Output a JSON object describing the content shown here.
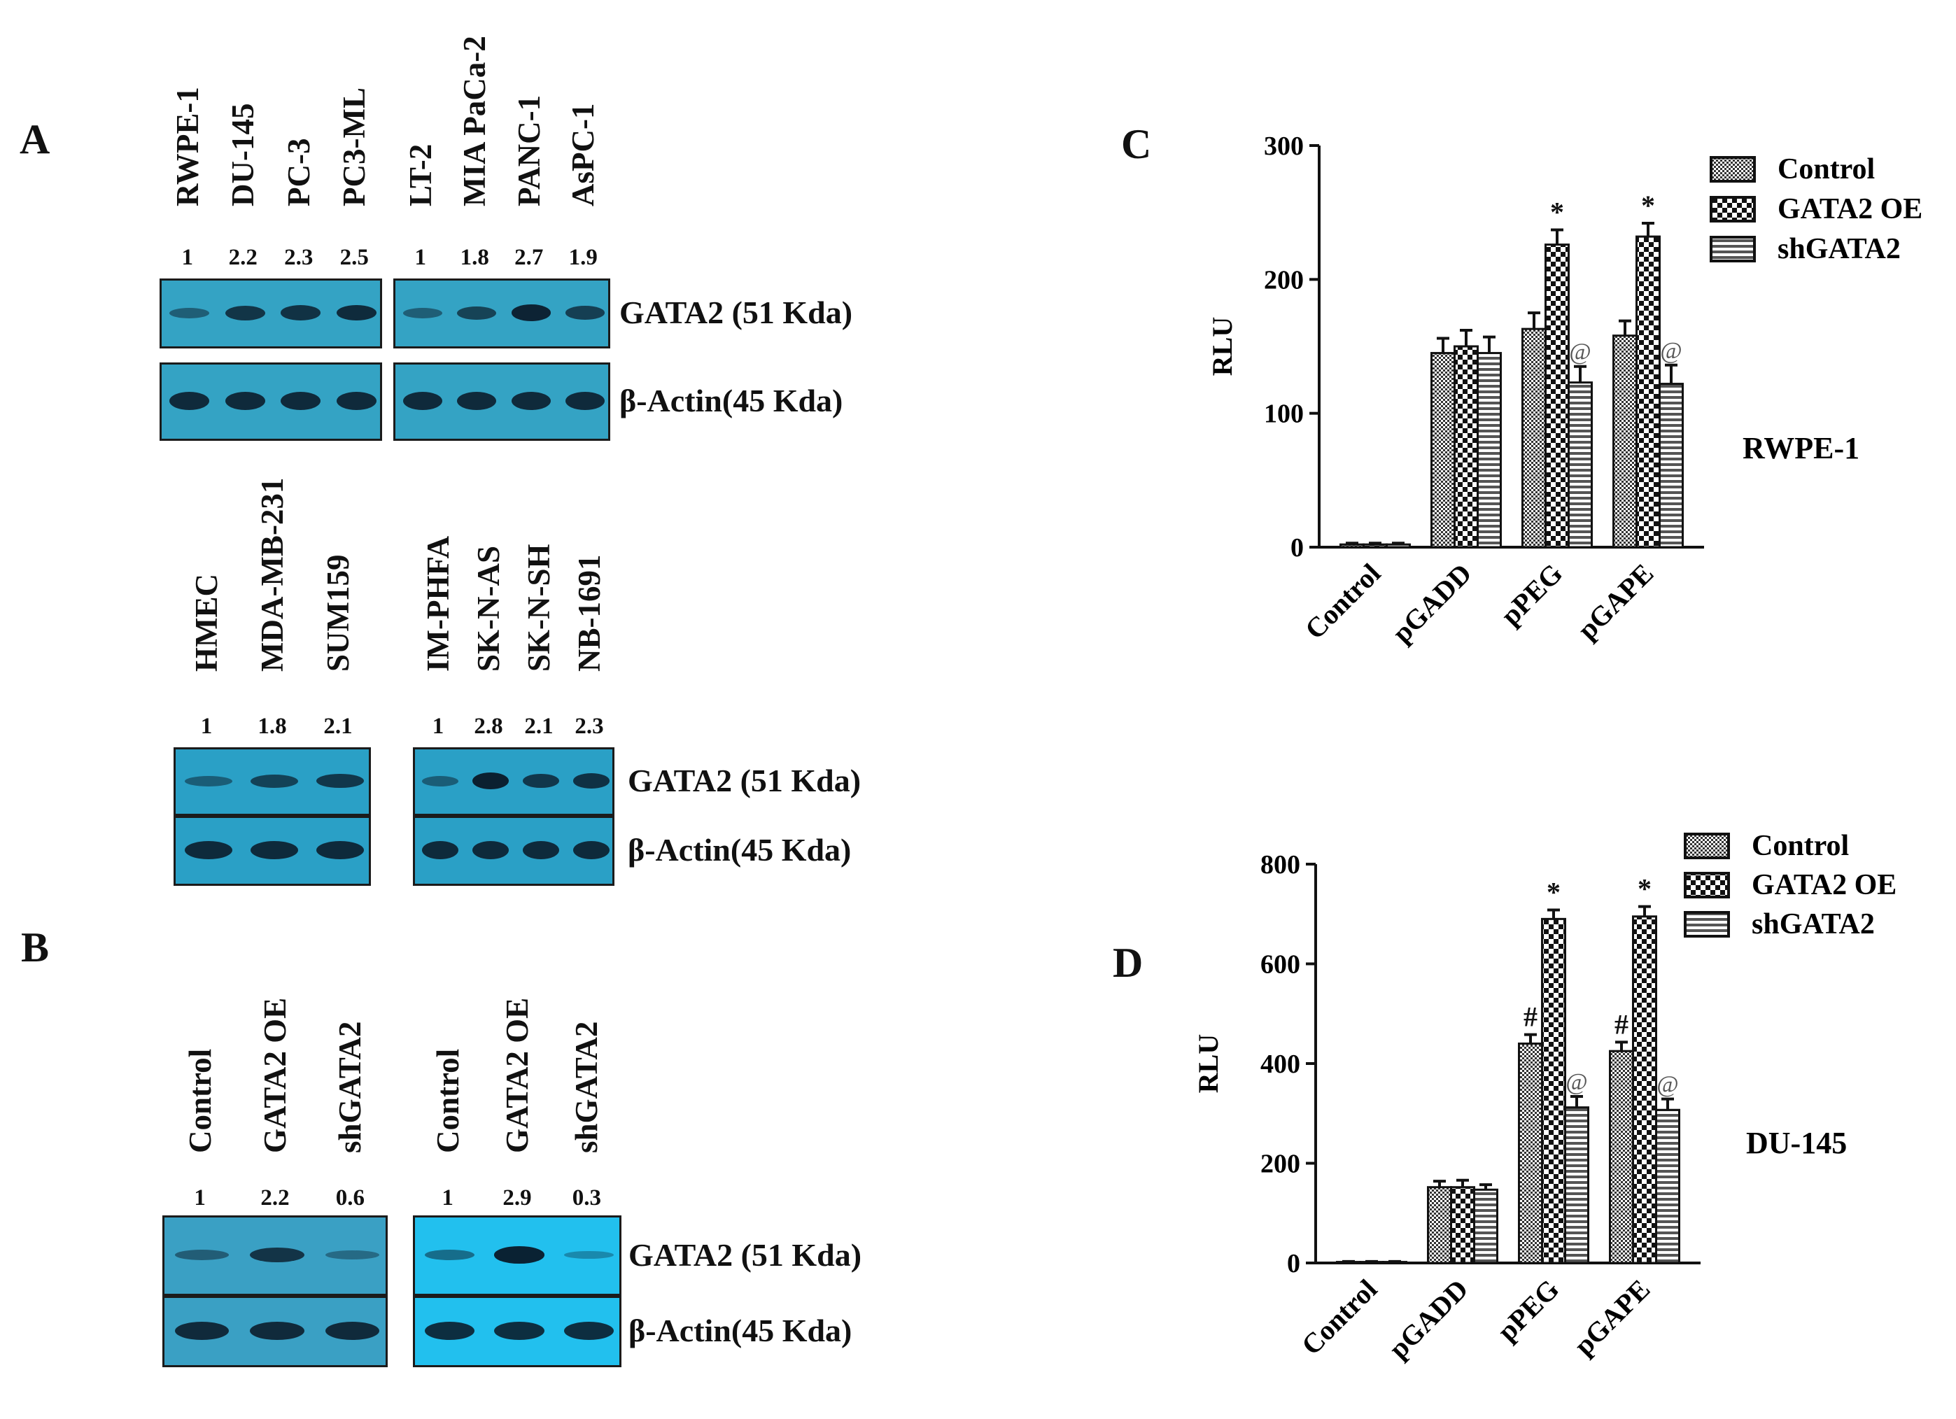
{
  "panels": {
    "A": "A",
    "B": "B",
    "C": "C",
    "D": "D"
  },
  "blot_labels": {
    "gata2": "GATA2 (51 Kda)",
    "actin": "β-Actin(45 Kda)"
  },
  "blot_groups": [
    {
      "lanes": [
        "RWPE-1",
        "DU-145",
        "PC-3",
        "PC3-ML"
      ],
      "ratios": [
        "1",
        "2.2",
        "2.3",
        "2.5"
      ]
    },
    {
      "lanes": [
        "LT-2",
        "MIA PaCa-2",
        "PANC-1",
        "AsPC-1"
      ],
      "ratios": [
        "1",
        "1.8",
        "2.7",
        "1.9"
      ]
    },
    {
      "lanes": [
        "HMEC",
        "MDA-MB-231",
        "SUM159"
      ],
      "ratios": [
        "1",
        "1.8",
        "2.1"
      ]
    },
    {
      "lanes": [
        "IM-PHFA",
        "SK-N-AS",
        "SK-N-SH",
        "NB-1691"
      ],
      "ratios": [
        "1",
        "2.8",
        "2.1",
        "2.3"
      ]
    },
    {
      "lanes": [
        "Control",
        "GATA2 OE",
        "shGATA2"
      ],
      "ratios": [
        "1",
        "2.2",
        "0.6"
      ]
    },
    {
      "lanes": [
        "Control",
        "GATA2 OE",
        "shGATA2"
      ],
      "ratios": [
        "1",
        "2.9",
        "0.3"
      ]
    }
  ],
  "chart_data": [
    {
      "type": "bar",
      "panel": "C",
      "cell_line": "RWPE-1",
      "ylabel": "RLU",
      "ylim": [
        0,
        300
      ],
      "yticks": [
        "0",
        "100",
        "200",
        "300"
      ],
      "categories": [
        "Control",
        "pGADD",
        "pPEG",
        "pGAPE"
      ],
      "series": [
        {
          "name": "Control",
          "values": [
            2,
            145,
            163,
            158
          ],
          "errors": [
            1,
            11,
            12,
            11
          ]
        },
        {
          "name": "GATA2 OE",
          "values": [
            2,
            150,
            226,
            232
          ],
          "errors": [
            1,
            12,
            11,
            10
          ]
        },
        {
          "name": "shGATA2",
          "values": [
            2,
            145,
            123,
            122
          ],
          "errors": [
            1,
            12,
            12,
            14
          ]
        }
      ],
      "annotations": [
        {
          "text": "*",
          "category": "pPEG",
          "series": "GATA2 OE"
        },
        {
          "text": "@",
          "category": "pPEG",
          "series": "shGATA2"
        },
        {
          "text": "*",
          "category": "pGAPE",
          "series": "GATA2 OE"
        },
        {
          "text": "@",
          "category": "pGAPE",
          "series": "shGATA2"
        }
      ],
      "legend": [
        "Control",
        "GATA2 OE",
        "shGATA2"
      ]
    },
    {
      "type": "bar",
      "panel": "D",
      "cell_line": "DU-145",
      "ylabel": "RLU",
      "ylim": [
        0,
        800
      ],
      "yticks": [
        "0",
        "200",
        "400",
        "600",
        "800"
      ],
      "categories": [
        "Control",
        "pGADD",
        "pPEG",
        "pGAPE"
      ],
      "series": [
        {
          "name": "Control",
          "values": [
            2,
            152,
            440,
            425
          ],
          "errors": [
            1,
            12,
            18,
            18
          ]
        },
        {
          "name": "GATA2 OE",
          "values": [
            2,
            152,
            690,
            695
          ],
          "errors": [
            1,
            14,
            18,
            20
          ]
        },
        {
          "name": "shGATA2",
          "values": [
            2,
            147,
            312,
            307
          ],
          "errors": [
            1,
            10,
            22,
            22
          ]
        }
      ],
      "annotations": [
        {
          "text": "#",
          "category": "pPEG",
          "series": "Control"
        },
        {
          "text": "*",
          "category": "pPEG",
          "series": "GATA2 OE"
        },
        {
          "text": "@",
          "category": "pPEG",
          "series": "shGATA2"
        },
        {
          "text": "#",
          "category": "pGAPE",
          "series": "Control"
        },
        {
          "text": "*",
          "category": "pGAPE",
          "series": "GATA2 OE"
        },
        {
          "text": "@",
          "category": "pGAPE",
          "series": "shGATA2"
        }
      ],
      "legend": [
        "Control",
        "GATA2 OE",
        "shGATA2"
      ]
    }
  ]
}
